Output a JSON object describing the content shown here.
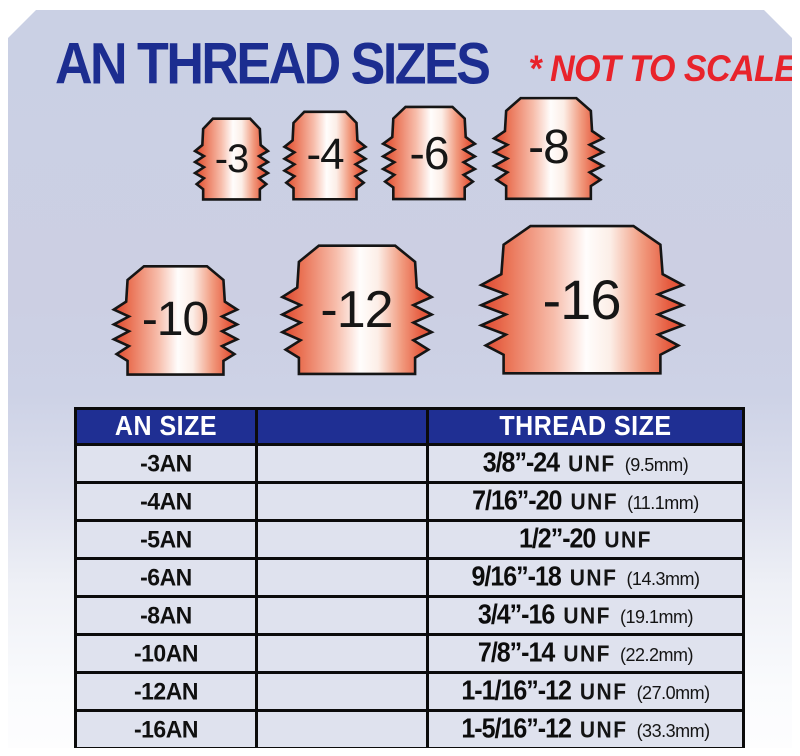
{
  "title": "AN THREAD SIZES",
  "subtitle": "* NOT TO SCALE *",
  "fittings": {
    "row1": [
      "-3",
      "-4",
      "-6",
      "-8"
    ],
    "row2": [
      "-10",
      "-12",
      "-16"
    ]
  },
  "table": {
    "headers": {
      "an": "AN SIZE",
      "spacer": "",
      "thread": "THREAD SIZE"
    },
    "rows": [
      {
        "an": "-3AN",
        "thread_main": "3/8”-24",
        "thread_std": "UNF",
        "thread_mm": "(9.5mm)"
      },
      {
        "an": "-4AN",
        "thread_main": "7/16”-20",
        "thread_std": "UNF",
        "thread_mm": "(11.1mm)"
      },
      {
        "an": "-5AN",
        "thread_main": "1/2”-20",
        "thread_std": "UNF",
        "thread_mm": ""
      },
      {
        "an": "-6AN",
        "thread_main": "9/16”-18",
        "thread_std": "UNF",
        "thread_mm": "(14.3mm)"
      },
      {
        "an": "-8AN",
        "thread_main": "3/4”-16",
        "thread_std": "UNF",
        "thread_mm": "(19.1mm)"
      },
      {
        "an": "-10AN",
        "thread_main": "7/8”-14",
        "thread_std": "UNF",
        "thread_mm": "(22.2mm)"
      },
      {
        "an": "-12AN",
        "thread_main": "1-1/16”-12",
        "thread_std": "UNF",
        "thread_mm": "(27.0mm)"
      },
      {
        "an": "-16AN",
        "thread_main": "1-5/16”-12",
        "thread_std": "UNF",
        "thread_mm": "(33.3mm)"
      }
    ]
  },
  "colors": {
    "title_blue": "#1c2d90",
    "note_red": "#e8232b",
    "panel_top": "#cbd1e5",
    "panel_bottom": "#fdfdfe",
    "header_bg": "#1f2f93",
    "header_text": "#ffffff",
    "cell_bg": "#dfe2ee",
    "table_border": "#0b0b0b",
    "fitting_outline": "#151515",
    "fitting_gradient": [
      [
        "0%",
        "#dc452f"
      ],
      [
        "12%",
        "#e96f51"
      ],
      [
        "36%",
        "#f7bdab"
      ],
      [
        "52%",
        "#fffdfc"
      ],
      [
        "64%",
        "#fceee7"
      ],
      [
        "80%",
        "#f19a7e"
      ],
      [
        "93%",
        "#e65c40"
      ],
      [
        "100%",
        "#e14e35"
      ]
    ]
  }
}
